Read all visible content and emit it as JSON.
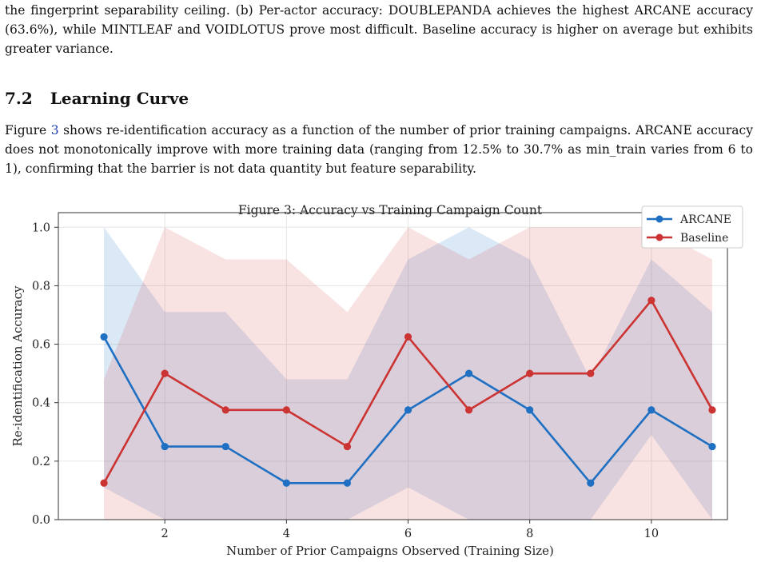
{
  "prev_paragraph": "the fingerprint separability ceiling. (b) Per-actor accuracy: DOUBLEPANDA achieves the highest ARCANE accuracy (63.6%), while MINTLEAF and VOIDLOTUS prove most difficult. Baseline accuracy is higher on average but exhibits greater variance.",
  "section": {
    "number": "7.2",
    "title": "Learning Curve"
  },
  "paragraph": {
    "prefix": "Figure ",
    "fig_ref": "3",
    "body": " shows re-identification accuracy as a function of the number of prior training campaigns. ARCANE accuracy does not monotonically improve with more training data (ranging from 12.5% to 30.7% as min_train varies from 6 to 1), confirming that the barrier is not data quantity but feature separability."
  },
  "chart_data": {
    "type": "line",
    "title": "Figure 3: Accuracy vs Training Campaign Count",
    "xlabel": "Number of Prior Campaigns Observed (Training Size)",
    "ylabel": "Re-identification Accuracy",
    "x": [
      1,
      2,
      3,
      4,
      5,
      6,
      7,
      8,
      9,
      10,
      11
    ],
    "xlim": [
      0.25,
      11.25
    ],
    "ylim": [
      0,
      1.05
    ],
    "xticks": [
      2,
      4,
      6,
      8,
      10
    ],
    "yticks": [
      0.0,
      0.2,
      0.4,
      0.6,
      0.8,
      1.0
    ],
    "ytick_labels": [
      "0.0",
      "0.2",
      "0.4",
      "0.6",
      "0.8",
      "1.0"
    ],
    "grid": true,
    "legend_position": "top-right",
    "series": [
      {
        "name": "ARCANE",
        "color": "#1f6fc2",
        "values": [
          0.625,
          0.25,
          0.25,
          0.125,
          0.125,
          0.375,
          0.5,
          0.375,
          0.125,
          0.375,
          0.25
        ],
        "band_upper": [
          1.0,
          0.71,
          0.71,
          0.48,
          0.48,
          0.89,
          1.0,
          0.89,
          0.48,
          0.89,
          0.71
        ],
        "band_lower": [
          0.11,
          0.0,
          0.0,
          0.0,
          0.0,
          0.11,
          0.0,
          0.0,
          0.0,
          0.29,
          0.0
        ]
      },
      {
        "name": "Baseline",
        "color": "#cc3333",
        "values": [
          0.125,
          0.5,
          0.375,
          0.375,
          0.25,
          0.625,
          0.375,
          0.5,
          0.5,
          0.75,
          0.375
        ],
        "band_upper": [
          0.48,
          1.0,
          0.89,
          0.89,
          0.71,
          1.0,
          0.89,
          1.0,
          1.0,
          1.0,
          0.89
        ],
        "band_lower": [
          0.0,
          0.0,
          0.0,
          0.0,
          0.0,
          0.0,
          0.0,
          0.0,
          0.0,
          0.0,
          0.0
        ]
      }
    ]
  }
}
